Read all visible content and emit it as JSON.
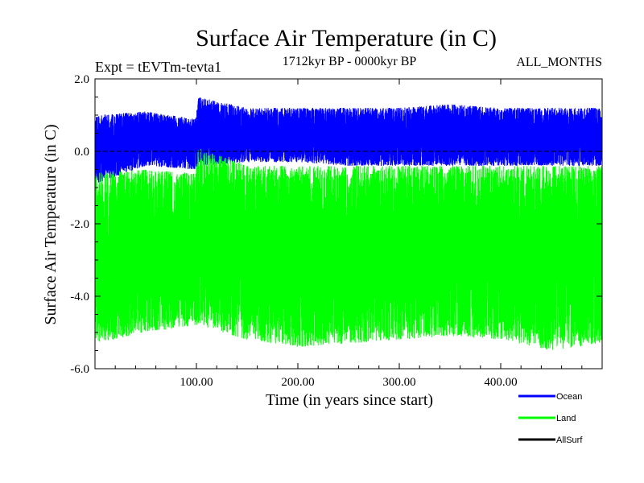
{
  "chart_data": {
    "type": "line",
    "title": "Surface Air Temperature (in C)",
    "subtitle": "1712kyr BP - 0000kyr BP",
    "experiment": "Expt = tEVTm-tevta1",
    "months": "ALL_MONTHS",
    "xlabel": "Time (in years since start)",
    "ylabel": "Surface Air Temperature (in C)",
    "xlim": [
      0,
      500
    ],
    "ylim": [
      -6.0,
      2.0
    ],
    "x_ticks": [
      100,
      200,
      300,
      400
    ],
    "x_tick_labels": [
      "100.00",
      "200.00",
      "300.00",
      "400.00"
    ],
    "y_ticks": [
      2.0,
      0.0,
      -2.0,
      -4.0,
      -6.0
    ],
    "y_tick_labels": [
      "2.0",
      "0.0",
      "-2.0",
      "-4.0",
      "-6.0"
    ],
    "reference_line": 0.0,
    "series": [
      {
        "name": "Ocean",
        "color": "#0000ff",
        "band": [
          {
            "x": 0,
            "low": -0.9,
            "high": 1.0
          },
          {
            "x": 50,
            "low": -0.4,
            "high": 1.1
          },
          {
            "x": 99,
            "low": -0.5,
            "high": 0.9
          },
          {
            "x": 102,
            "low": -0.4,
            "high": 1.5
          },
          {
            "x": 150,
            "low": -0.3,
            "high": 1.2
          },
          {
            "x": 200,
            "low": -0.3,
            "high": 1.2
          },
          {
            "x": 250,
            "low": -0.4,
            "high": 1.2
          },
          {
            "x": 300,
            "low": -0.4,
            "high": 1.2
          },
          {
            "x": 350,
            "low": -0.4,
            "high": 1.3
          },
          {
            "x": 400,
            "low": -0.4,
            "high": 1.2
          },
          {
            "x": 450,
            "low": -0.4,
            "high": 1.2
          },
          {
            "x": 500,
            "low": -0.4,
            "high": 1.2
          }
        ]
      },
      {
        "name": "Land",
        "color": "#00ff00",
        "band": [
          {
            "x": 0,
            "low": -5.3,
            "high": -0.6
          },
          {
            "x": 50,
            "low": -5.0,
            "high": -0.5
          },
          {
            "x": 99,
            "low": -4.8,
            "high": -0.6
          },
          {
            "x": 102,
            "low": -4.8,
            "high": 0.1
          },
          {
            "x": 150,
            "low": -5.2,
            "high": -0.4
          },
          {
            "x": 200,
            "low": -5.4,
            "high": -0.4
          },
          {
            "x": 250,
            "low": -5.3,
            "high": -0.4
          },
          {
            "x": 300,
            "low": -5.2,
            "high": -0.4
          },
          {
            "x": 350,
            "low": -5.1,
            "high": -0.4
          },
          {
            "x": 400,
            "low": -5.2,
            "high": -0.4
          },
          {
            "x": 450,
            "low": -5.5,
            "high": -0.4
          },
          {
            "x": 500,
            "low": -5.3,
            "high": -0.4
          }
        ]
      },
      {
        "name": "AllSurf",
        "color": "#000000",
        "band": []
      }
    ]
  }
}
